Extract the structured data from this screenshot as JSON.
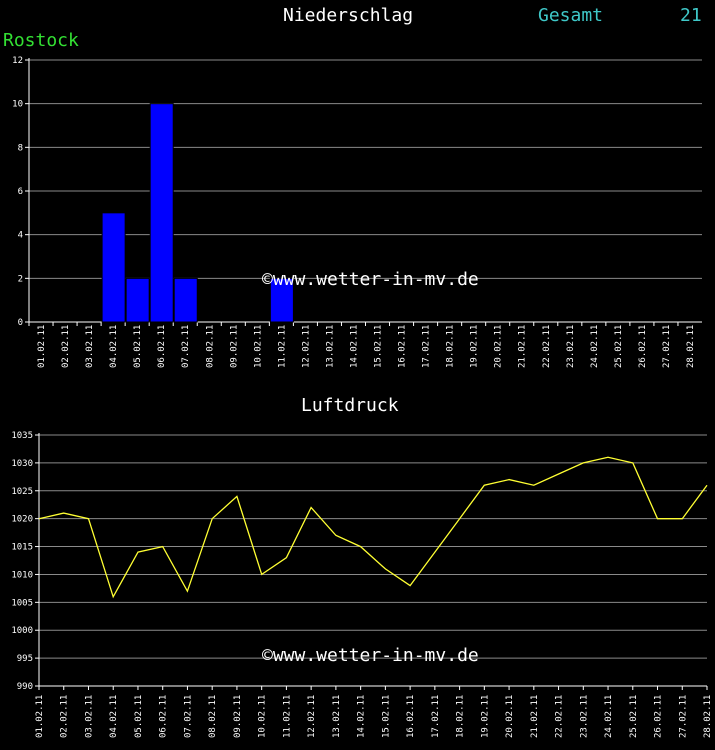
{
  "header": {
    "title": "Niederschlag",
    "total_label": "Gesamt",
    "total_value": "21",
    "station": "Rostock",
    "title2": "Luftdruck"
  },
  "watermark": "©www.wetter-in-mv.de",
  "colors": {
    "bar": "#0000ff",
    "line": "#ffff33",
    "grid": "#8a8a8a",
    "station": "#33e033",
    "total": "#3fc8c8"
  },
  "chart_data": [
    {
      "type": "bar",
      "title": "Niederschlag",
      "categories": [
        "01.02.11",
        "02.02.11",
        "03.02.11",
        "04.02.11",
        "05.02.11",
        "06.02.11",
        "07.02.11",
        "08.02.11",
        "09.02.11",
        "10.02.11",
        "11.02.11",
        "12.02.11",
        "13.02.11",
        "14.02.11",
        "15.02.11",
        "16.02.11",
        "17.02.11",
        "18.02.11",
        "19.02.11",
        "20.02.11",
        "21.02.11",
        "22.02.11",
        "23.02.11",
        "24.02.11",
        "25.02.11",
        "26.02.11",
        "27.02.11",
        "28.02.11"
      ],
      "values": [
        0,
        0,
        0,
        5,
        2,
        10,
        2,
        0,
        0,
        0,
        2,
        0,
        0,
        0,
        0,
        0,
        0,
        0,
        0,
        0,
        0,
        0,
        0,
        0,
        0,
        0,
        0,
        0
      ],
      "ylim": [
        0,
        12
      ],
      "yticks": [
        0,
        2,
        4,
        6,
        8,
        10,
        12
      ],
      "grid": true
    },
    {
      "type": "line",
      "title": "Luftdruck",
      "categories": [
        "01.02.11",
        "02.02.11",
        "03.02.11",
        "04.02.11",
        "05.02.11",
        "06.02.11",
        "07.02.11",
        "08.02.11",
        "09.02.11",
        "10.02.11",
        "11.02.11",
        "12.02.11",
        "13.02.11",
        "14.02.11",
        "15.02.11",
        "16.02.11",
        "17.02.11",
        "18.02.11",
        "19.02.11",
        "20.02.11",
        "21.02.11",
        "22.02.11",
        "23.02.11",
        "24.02.11",
        "25.02.11",
        "26.02.11",
        "27.02.11",
        "28.02.11"
      ],
      "values": [
        1020,
        1021,
        1020,
        1006,
        1014,
        1015,
        1007,
        1020,
        1024,
        1010,
        1013,
        1022,
        1017,
        1015,
        1011,
        1008,
        1014,
        1020,
        1026,
        1027,
        1026,
        1028,
        1030,
        1031,
        1030,
        1020,
        1020,
        1026
      ],
      "ylim": [
        990,
        1035
      ],
      "yticks": [
        990,
        995,
        1000,
        1005,
        1010,
        1015,
        1020,
        1025,
        1030,
        1035
      ],
      "grid": true
    }
  ]
}
